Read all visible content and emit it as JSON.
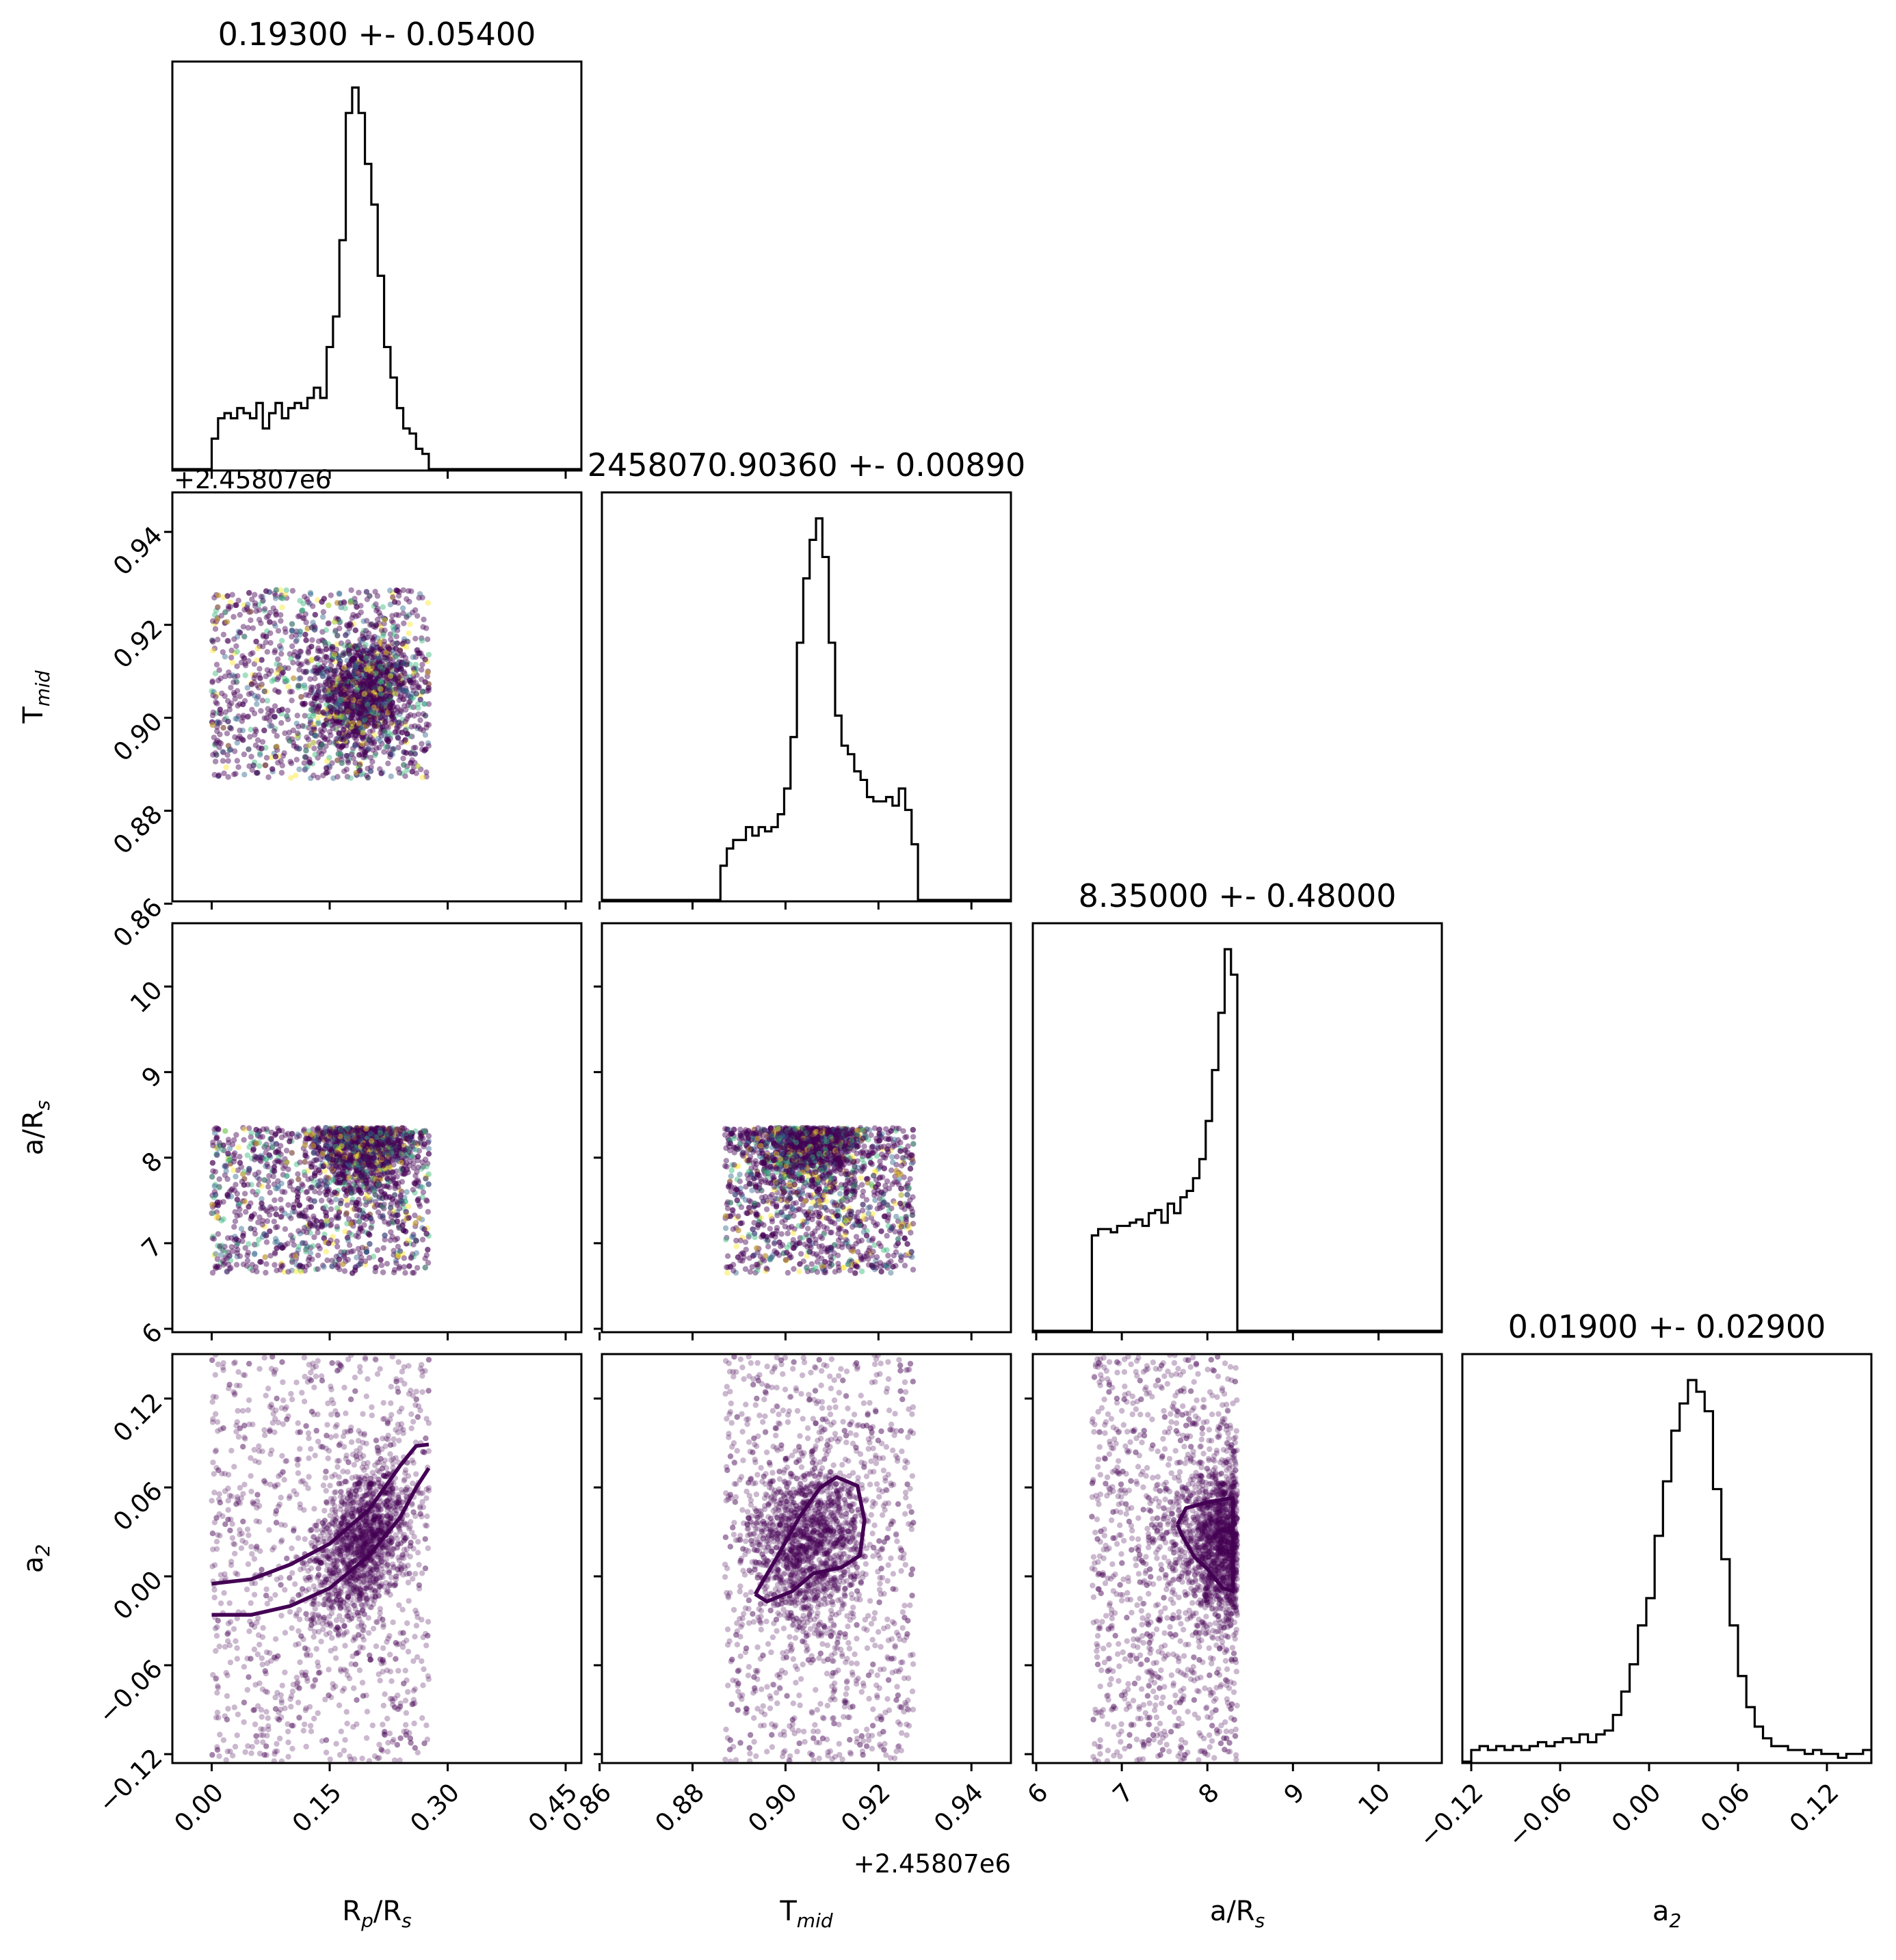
{
  "chart_data": {
    "type": "corner",
    "parameters": [
      {
        "name": "Rp/Rs",
        "xlabel_main": "R",
        "xlabel_sub1": "p",
        "xlabel_mid": "/R",
        "xlabel_sub2": "s",
        "title": "0.19300 +- 0.05400",
        "xlim": [
          -0.05,
          0.47
        ],
        "ticks": [
          0.0,
          0.15,
          0.3,
          0.45
        ],
        "tick_labels": [
          "0.00",
          "0.15",
          "0.30",
          "0.45"
        ],
        "hist": {
          "edges": [
            0.0,
            0.276
          ],
          "counts": [
            6,
            10,
            11,
            10,
            12,
            11,
            10,
            13,
            8,
            11,
            13,
            10,
            12,
            13,
            12,
            14,
            16,
            14,
            24,
            30,
            45,
            70,
            75,
            70,
            60,
            52,
            38,
            24,
            18,
            12,
            8,
            7,
            4,
            3
          ]
        }
      },
      {
        "name": "Tmid",
        "xlabel_main": "T",
        "xlabel_sub1": "mid",
        "title": "2458070.90360 +- 0.00890",
        "offset_label": "+2.45807e6",
        "xlim": [
          0.8605,
          0.9485
        ],
        "ticks": [
          0.86,
          0.88,
          0.9,
          0.92,
          0.94
        ],
        "tick_labels": [
          "0.86",
          "0.88",
          "0.90",
          "0.92",
          "0.94"
        ],
        "hist": {
          "edges": [
            0.886,
            0.9285
          ],
          "counts": [
            8,
            12,
            14,
            14,
            17,
            15,
            17,
            16,
            17,
            20,
            26,
            38,
            60,
            75,
            84,
            89,
            80,
            60,
            43,
            36,
            34,
            30,
            28,
            24,
            23,
            23,
            24,
            22,
            26,
            21,
            13
          ]
        }
      },
      {
        "name": "a/Rs",
        "xlabel_main": "a/R",
        "xlabel_sub1": "s",
        "title": "8.35000 +- 0.48000",
        "xlim": [
          5.96,
          10.74
        ],
        "ticks": [
          6,
          7,
          8,
          9,
          10
        ],
        "tick_labels": [
          "6",
          "7",
          "8",
          "9",
          "10"
        ],
        "hist": {
          "edges": [
            6.65,
            8.35
          ],
          "counts": [
            30,
            32,
            32,
            31,
            33,
            33,
            34,
            35,
            33,
            37,
            38,
            34,
            40,
            37,
            42,
            44,
            48,
            54,
            66,
            82,
            100,
            120,
            112
          ]
        }
      },
      {
        "name": "a2",
        "xlabel_main": "a",
        "xlabel_sub1": "2",
        "title": "0.01900 +- 0.02900",
        "xlim": [
          -0.126,
          0.15
        ],
        "ticks": [
          -0.12,
          -0.06,
          0.0,
          0.06,
          0.12
        ],
        "tick_labels": [
          "−0.12",
          "−0.06",
          "0.00",
          "0.06",
          "0.12"
        ],
        "hist": {
          "edges": [
            -0.12,
            0.15
          ],
          "counts": [
            3,
            4,
            3,
            4,
            3,
            4,
            3,
            4,
            5,
            4,
            5,
            6,
            5,
            7,
            5,
            7,
            8,
            12,
            18,
            25,
            35,
            42,
            58,
            72,
            85,
            92,
            98,
            95,
            90,
            70,
            52,
            35,
            22,
            14,
            9,
            6,
            4,
            4,
            3,
            3,
            2,
            3,
            2,
            2,
            1,
            2,
            2,
            3
          ]
        }
      }
    ],
    "ylabels": [
      {
        "main": "T",
        "sub": "mid"
      },
      {
        "main": "a/R",
        "sub": "s"
      },
      {
        "main": "a",
        "sub": "2"
      }
    ],
    "ytick_values": [
      [
        0.86,
        0.88,
        0.9,
        0.92,
        0.94
      ],
      [
        6,
        7,
        8,
        9,
        10
      ],
      [
        -0.12,
        -0.06,
        0.0,
        0.06,
        0.12
      ]
    ],
    "ytick_labels": [
      [
        "0.86",
        "0.88",
        "0.90",
        "0.92",
        "0.94"
      ],
      [
        "6",
        "7",
        "8",
        "9",
        "10"
      ],
      [
        "−0.12",
        "−0.06",
        "0.00",
        "0.06",
        "0.12"
      ]
    ],
    "scatter_colormap": [
      "#440154",
      "#31688e",
      "#35b779",
      "#fde725"
    ],
    "density_contours": [
      {
        "x": "Rp/Rs",
        "y": "a2",
        "path": [
          [
            0.0,
            -0.005
          ],
          [
            0.05,
            -0.002
          ],
          [
            0.1,
            0.008
          ],
          [
            0.15,
            0.022
          ],
          [
            0.2,
            0.045
          ],
          [
            0.24,
            0.075
          ],
          [
            0.26,
            0.088
          ],
          [
            0.276,
            0.089
          ]
        ]
      },
      {
        "x": "Rp/Rs",
        "y": "a2",
        "path": [
          [
            0.0,
            -0.026
          ],
          [
            0.05,
            -0.026
          ],
          [
            0.1,
            -0.02
          ],
          [
            0.15,
            -0.008
          ],
          [
            0.2,
            0.014
          ],
          [
            0.24,
            0.04
          ],
          [
            0.26,
            0.06
          ],
          [
            0.276,
            0.073
          ]
        ]
      },
      {
        "x": "Tmid",
        "y": "a2",
        "path": [
          [
            0.8935,
            -0.012
          ],
          [
            0.898,
            0.012
          ],
          [
            0.903,
            0.04
          ],
          [
            0.9075,
            0.06
          ],
          [
            0.911,
            0.067
          ],
          [
            0.9155,
            0.061
          ],
          [
            0.917,
            0.038
          ],
          [
            0.916,
            0.014
          ],
          [
            0.912,
            0.006
          ],
          [
            0.906,
            0.002
          ],
          [
            0.9015,
            -0.01
          ],
          [
            0.896,
            -0.017
          ],
          [
            0.8935,
            -0.012
          ]
        ]
      },
      {
        "x": "a/Rs",
        "y": "a2",
        "path": [
          [
            7.65,
            0.035
          ],
          [
            7.75,
            0.046
          ],
          [
            8.0,
            0.05
          ],
          [
            8.3,
            0.053
          ],
          [
            8.3,
            -0.01
          ],
          [
            8.18,
            -0.008
          ],
          [
            8.0,
            0.005
          ],
          [
            7.85,
            0.013
          ],
          [
            7.7,
            0.028
          ],
          [
            7.65,
            0.035
          ]
        ]
      }
    ]
  }
}
